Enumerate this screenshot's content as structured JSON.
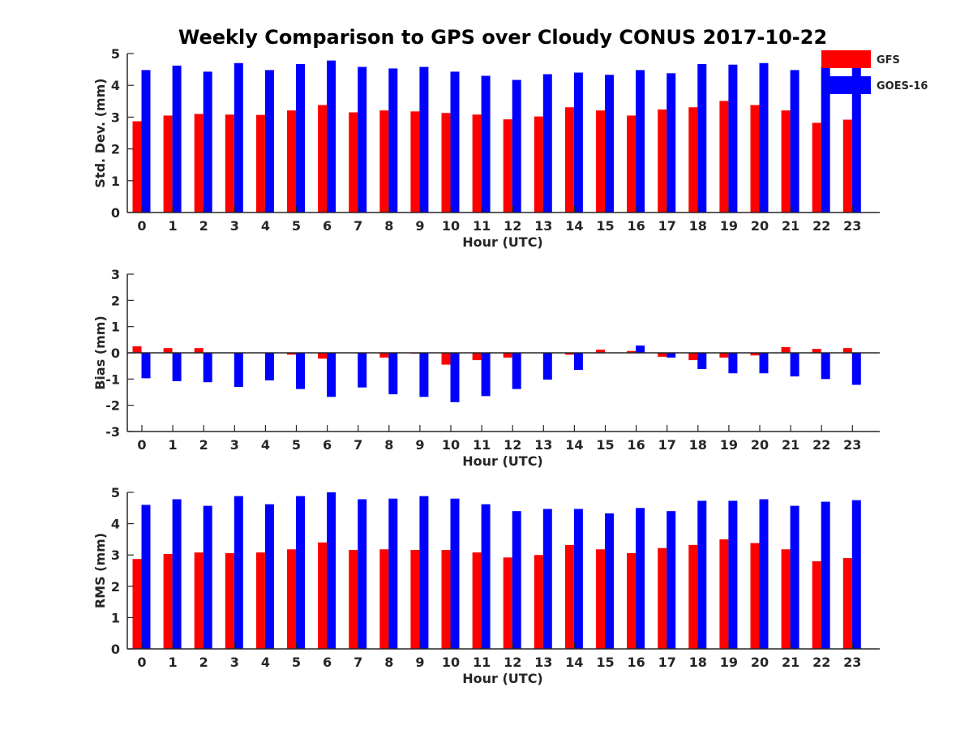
{
  "chart_data": {
    "type": "bar",
    "title": "Weekly Comparison to GPS over Cloudy CONUS 2017-10-22",
    "legend": {
      "placement": "top-right",
      "entries": [
        {
          "name": "GFS",
          "color": "#ff0000"
        },
        {
          "name": "GOES-16",
          "color": "#0000ff"
        }
      ]
    },
    "categories": [
      "0",
      "1",
      "2",
      "3",
      "4",
      "5",
      "6",
      "7",
      "8",
      "9",
      "10",
      "11",
      "12",
      "13",
      "14",
      "15",
      "16",
      "17",
      "18",
      "19",
      "20",
      "21",
      "22",
      "23"
    ],
    "panels": [
      {
        "ylabel": "Std. Dev. (mm)",
        "xlabel": "Hour (UTC)",
        "ylim": [
          0,
          5
        ],
        "yticks": [
          "0",
          "1",
          "2",
          "3",
          "4",
          "5"
        ],
        "series": [
          {
            "name": "GFS",
            "color": "#ff0000",
            "values": [
              2.87,
              3.05,
              3.1,
              3.08,
              3.07,
              3.21,
              3.38,
              3.15,
              3.21,
              3.18,
              3.13,
              3.08,
              2.93,
              3.02,
              3.31,
              3.21,
              3.05,
              3.24,
              3.31,
              3.51,
              3.38,
              3.21,
              2.82,
              2.92
            ]
          },
          {
            "name": "GOES-16",
            "color": "#0000ff",
            "values": [
              4.48,
              4.62,
              4.43,
              4.7,
              4.48,
              4.67,
              4.78,
              4.58,
              4.53,
              4.58,
              4.43,
              4.3,
              4.17,
              4.35,
              4.4,
              4.33,
              4.48,
              4.38,
              4.67,
              4.65,
              4.7,
              4.48,
              4.6,
              4.6
            ]
          }
        ]
      },
      {
        "ylabel": "Bias (mm)",
        "xlabel": "Hour (UTC)",
        "ylim": [
          -3,
          3
        ],
        "yticks": [
          "-3",
          "-2",
          "-1",
          "0",
          "1",
          "2",
          "3"
        ],
        "series": [
          {
            "name": "GFS",
            "color": "#ff0000",
            "values": [
              0.25,
              0.18,
              0.18,
              0.0,
              0.0,
              -0.07,
              -0.22,
              0.0,
              -0.18,
              -0.03,
              -0.45,
              -0.28,
              -0.18,
              0.0,
              -0.07,
              0.12,
              0.07,
              -0.15,
              -0.28,
              -0.18,
              -0.1,
              0.22,
              0.15,
              0.18
            ]
          },
          {
            "name": "GOES-16",
            "color": "#0000ff",
            "values": [
              -0.97,
              -1.08,
              -1.12,
              -1.3,
              -1.05,
              -1.38,
              -1.68,
              -1.32,
              -1.58,
              -1.68,
              -1.88,
              -1.65,
              -1.38,
              -1.02,
              -0.65,
              0.0,
              0.28,
              -0.18,
              -0.62,
              -0.78,
              -0.78,
              -0.9,
              -1.0,
              -1.22
            ]
          }
        ]
      },
      {
        "ylabel": "RMS (mm)",
        "xlabel": "Hour (UTC)",
        "ylim": [
          0,
          5
        ],
        "yticks": [
          "0",
          "1",
          "2",
          "3",
          "4",
          "5"
        ],
        "series": [
          {
            "name": "GFS",
            "color": "#ff0000",
            "values": [
              2.87,
              3.03,
              3.08,
              3.06,
              3.08,
              3.18,
              3.4,
              3.16,
              3.18,
              3.16,
              3.16,
              3.08,
              2.92,
              3.0,
              3.32,
              3.18,
              3.06,
              3.22,
              3.32,
              3.5,
              3.38,
              3.18,
              2.8,
              2.9
            ]
          },
          {
            "name": "GOES-16",
            "color": "#0000ff",
            "values": [
              4.6,
              4.78,
              4.57,
              4.88,
              4.62,
              4.88,
              5.0,
              4.78,
              4.8,
              4.88,
              4.8,
              4.62,
              4.4,
              4.47,
              4.47,
              4.33,
              4.5,
              4.4,
              4.73,
              4.73,
              4.78,
              4.57,
              4.7,
              4.75
            ]
          }
        ]
      }
    ]
  }
}
